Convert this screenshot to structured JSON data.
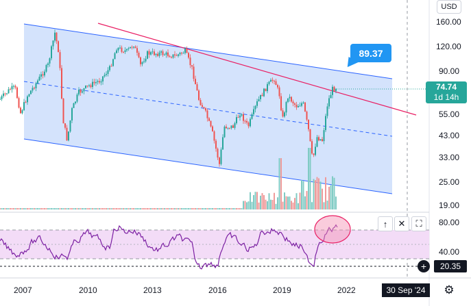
{
  "toolbar": {
    "currency": "USD"
  },
  "price_axis": {
    "labels": [
      "160.00",
      "120.00",
      "90.00",
      "55.00",
      "43.00",
      "33.00",
      "25.00",
      "19.00"
    ]
  },
  "rsi_axis": {
    "labels": [
      "80.00",
      "40.00"
    ]
  },
  "time_axis": {
    "labels": [
      "2007",
      "2010",
      "2013",
      "2016",
      "2019",
      "2022"
    ]
  },
  "callout": {
    "value": "89.37"
  },
  "last_price": {
    "value": "74.74",
    "countdown": "1d 14h"
  },
  "rsi_last": {
    "value": "20.35"
  },
  "crosshair_date": "30 Sep '24",
  "controls": {
    "up_icon": "arrow-up-icon",
    "close_icon": "close-icon",
    "maximize_icon": "maximize-icon",
    "plus_icon": "plus-icon",
    "settings_icon": "gear-icon"
  },
  "colors": {
    "channel_fill": "#c9dcfb",
    "channel_line": "#2962ff",
    "trendline": "#e91e63",
    "candle_up": "#26a69a",
    "candle_down": "#ef5350",
    "rsi_line": "#7b1fa2",
    "rsi_band": "#f3dcf7",
    "last_price": "#26a69a",
    "callout": "#2196f3"
  }
}
